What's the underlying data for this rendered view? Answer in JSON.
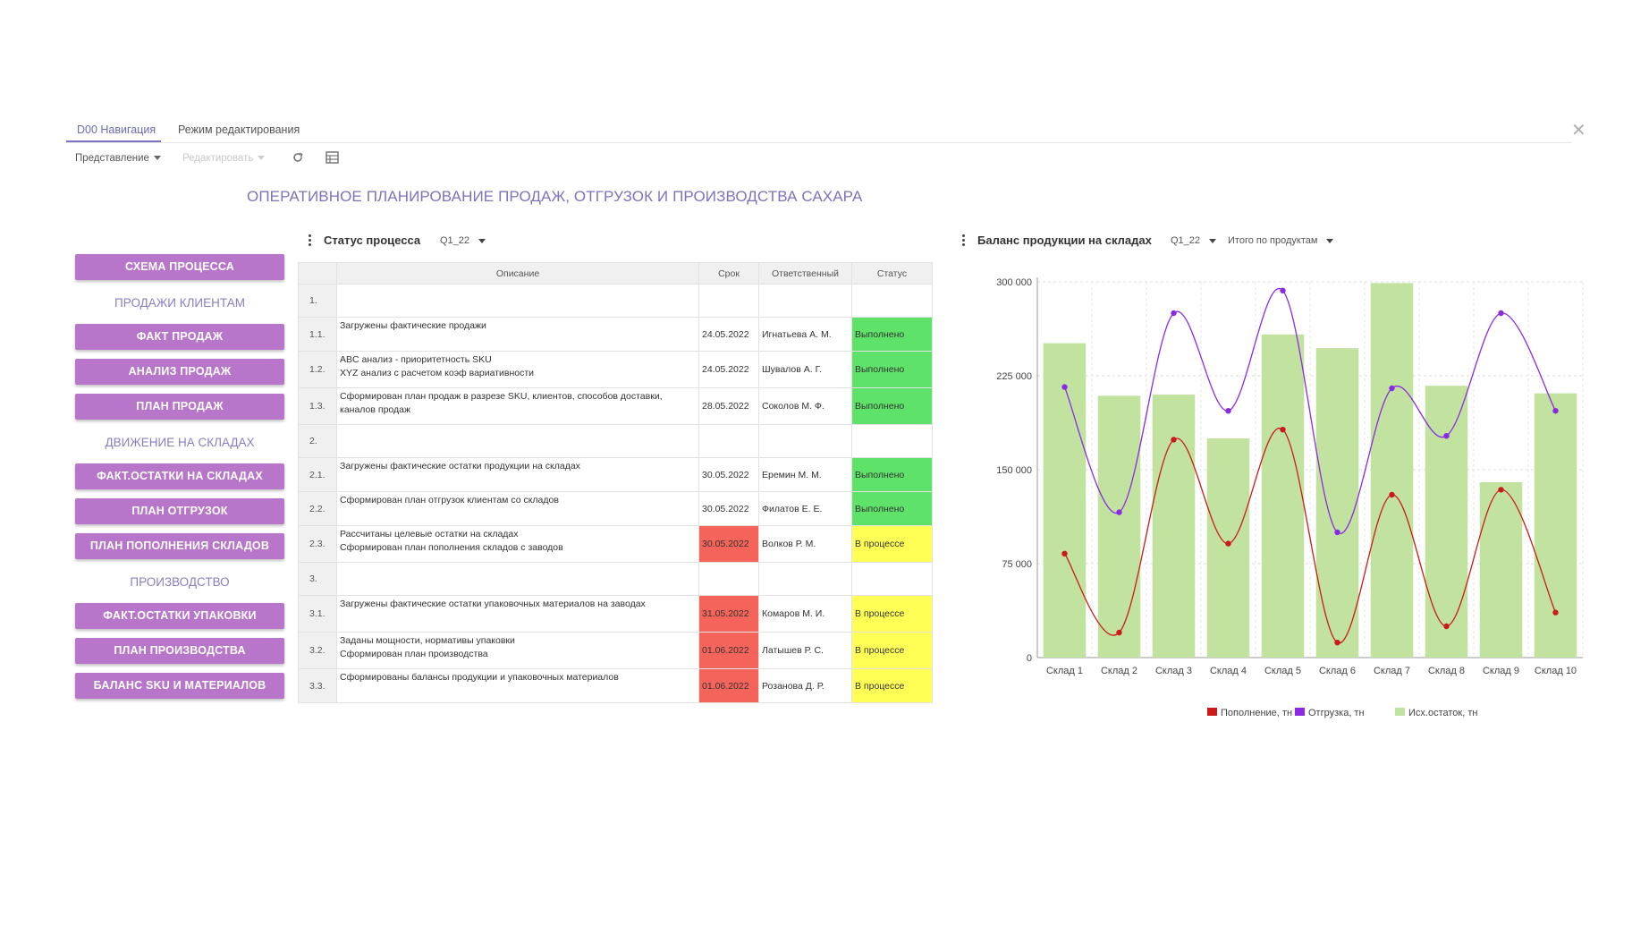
{
  "tabs": [
    {
      "label": "D00 Навигация",
      "active": true
    },
    {
      "label": "Режим редактирования",
      "active": false
    }
  ],
  "toolbar": {
    "view_label": "Представление",
    "edit_label": "Редактировать"
  },
  "page_title": "ОПЕРАТИВНОЕ ПЛАНИРОВАНИЕ ПРОДАЖ, ОТГРУЗОК И ПРОИЗВОДСТВА САХАРА",
  "nav": {
    "scheme": "СХЕМА ПРОЦЕССА",
    "sales_head": "ПРОДАЖИ КЛИЕНТАМ",
    "sales_fact": "ФАКТ ПРОДАЖ",
    "sales_analysis": "АНАЛИЗ ПРОДАЖ",
    "sales_plan": "ПЛАН ПРОДАЖ",
    "stock_head": "ДВИЖЕНИЕ НА СКЛАДАХ",
    "stock_fact": "ФАКТ.ОСТАТКИ НА СКЛАДАХ",
    "shipment_plan": "ПЛАН ОТГРУЗОК",
    "replenish_plan": "ПЛАН ПОПОЛНЕНИЯ СКЛАДОВ",
    "prod_head": "ПРОИЗВОДСТВО",
    "pack_fact": "ФАКТ.ОСТАТКИ УПАКОВКИ",
    "prod_plan": "ПЛАН ПРОИЗВОДСТВА",
    "balance": "БАЛАНС SKU И МАТЕРИАЛОВ"
  },
  "status": {
    "title": "Статус процесса",
    "period": "Q1_22",
    "columns": {
      "desc": "Описание",
      "date": "Срок",
      "resp": "Ответственный",
      "status": "Статус"
    },
    "rows": [
      {
        "num": "1.",
        "desc": "",
        "date": "",
        "resp": "",
        "status": "",
        "kind": "group"
      },
      {
        "num": "1.1.",
        "desc": "Загружены фактические продажи",
        "date": "24.05.2022",
        "resp": "Игнатьева А. М.",
        "status": "Выполнено",
        "kind": "ok"
      },
      {
        "num": "1.2.",
        "desc": "ABC анализ - приоритетность SKU\nXYZ анализ с расчетом коэф вариативности",
        "date": "24.05.2022",
        "resp": "Шувалов А. Г.",
        "status": "Выполнено",
        "kind": "ok"
      },
      {
        "num": "1.3.",
        "desc": "Сформирован план продаж в разрезе SKU, клиентов, способов доставки, каналов продаж",
        "date": "28.05.2022",
        "resp": "Соколов М. Ф.",
        "status": "Выполнено",
        "kind": "ok"
      },
      {
        "num": "2.",
        "desc": "",
        "date": "",
        "resp": "",
        "status": "",
        "kind": "group"
      },
      {
        "num": "2.1.",
        "desc": "Загружены фактические остатки продукции на складах",
        "date": "30.05.2022",
        "resp": "Еремин М. М.",
        "status": "Выполнено",
        "kind": "ok"
      },
      {
        "num": "2.2.",
        "desc": "Сформирован план отгрузок клиентам со складов",
        "date": "30.05.2022",
        "resp": "Филатов Е. Е.",
        "status": "Выполнено",
        "kind": "ok"
      },
      {
        "num": "2.3.",
        "desc": "Рассчитаны целевые остатки на складах\nСформирован план пополнения складов с заводов",
        "date": "30.05.2022",
        "resp": "Волков Р. М.",
        "status": "В процессе",
        "kind": "late"
      },
      {
        "num": "3.",
        "desc": "",
        "date": "",
        "resp": "",
        "status": "",
        "kind": "group"
      },
      {
        "num": "3.1.",
        "desc": "Загружены фактические остатки упаковочных материалов на заводах",
        "date": "31.05.2022",
        "resp": "Комаров М. И.",
        "status": "В процессе",
        "kind": "late"
      },
      {
        "num": "3.2.",
        "desc": "Заданы мощности, нормативы упаковки\nСформирован план производства",
        "date": "01.06.2022",
        "resp": "Латышев Р. С.",
        "status": "В процессе",
        "kind": "late"
      },
      {
        "num": "3.3.",
        "desc": "Сформированы балансы продукции и упаковочных материалов",
        "date": "01.06.2022",
        "resp": "Розанова Д. Р.",
        "status": "В процессе",
        "kind": "late"
      }
    ]
  },
  "balance": {
    "title": "Баланс продукции на складах",
    "period": "Q1_22",
    "total": "Итого по продуктам"
  },
  "chart_data": {
    "type": "bar",
    "categories": [
      "Склад 1",
      "Склад 2",
      "Склад 3",
      "Склад 4",
      "Склад 5",
      "Склад 6",
      "Склад 7",
      "Склад 8",
      "Склад 9",
      "Склад 10"
    ],
    "ylim": [
      0,
      300000
    ],
    "yticks": [
      0,
      75000,
      150000,
      225000,
      300000
    ],
    "ytick_labels": [
      "0",
      "75 000",
      "150 000",
      "225 000",
      "300 000"
    ],
    "grid": true,
    "legend_position": "bottom",
    "series": [
      {
        "name": "Пополнение, тн",
        "type": "line",
        "color": "#cc1a1a",
        "values": [
          83000,
          20000,
          174000,
          91000,
          182000,
          12000,
          130000,
          25000,
          134000,
          36000
        ]
      },
      {
        "name": "Отгрузка, тн",
        "type": "line",
        "color": "#8a2be2",
        "values": [
          216000,
          116000,
          275000,
          197000,
          293000,
          100000,
          215000,
          177000,
          275000,
          197000
        ]
      },
      {
        "name": "Исх.остаток, тн",
        "type": "bar",
        "color": "#c2e3a0",
        "values": [
          251000,
          209000,
          210000,
          175000,
          258000,
          247000,
          299000,
          217000,
          140000,
          211000
        ]
      }
    ]
  }
}
